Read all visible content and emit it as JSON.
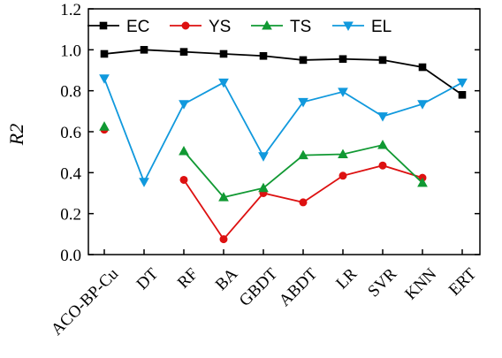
{
  "chart_data": {
    "type": "line",
    "title": "",
    "xlabel": "",
    "ylabel": "R2",
    "ylim": [
      0.0,
      1.2
    ],
    "yticks": [
      "0.0",
      "0.2",
      "0.4",
      "0.6",
      "0.8",
      "1.0",
      "1.2"
    ],
    "grid": false,
    "legend_position": "top",
    "categories": [
      "ACO-BP-Cu",
      "DT",
      "RF",
      "BA",
      "GBDT",
      "ABDT",
      "LR",
      "SVR",
      "KNN",
      "ERT"
    ],
    "series": [
      {
        "name": "EC",
        "color": "#000000",
        "marker": "square",
        "values": [
          0.98,
          1.0,
          0.99,
          0.98,
          0.97,
          0.95,
          0.955,
          0.95,
          0.915,
          0.78
        ]
      },
      {
        "name": "YS",
        "color": "#dd1111",
        "marker": "circle",
        "values": [
          0.61,
          null,
          0.365,
          0.075,
          0.3,
          0.255,
          0.385,
          0.435,
          0.375,
          null
        ]
      },
      {
        "name": "TS",
        "color": "#119933",
        "marker": "triangle-up",
        "values": [
          0.625,
          null,
          0.505,
          0.28,
          0.325,
          0.485,
          0.49,
          0.535,
          0.35,
          null
        ]
      },
      {
        "name": "EL",
        "color": "#1199dd",
        "marker": "triangle-down",
        "values": [
          0.86,
          0.355,
          0.735,
          0.84,
          0.48,
          0.745,
          0.795,
          0.675,
          0.735,
          0.84
        ]
      }
    ]
  }
}
